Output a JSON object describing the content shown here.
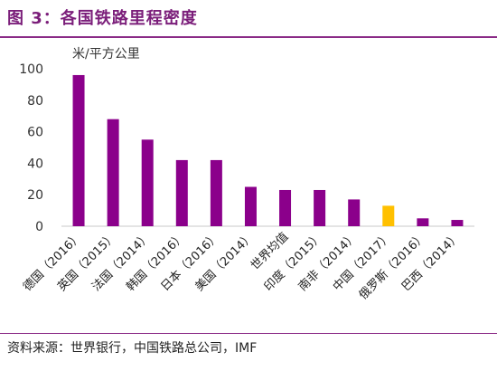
{
  "header": {
    "title": "图 3：各国铁路里程密度"
  },
  "footer": {
    "source": "资料来源：世界银行，中国铁路总公司，IMF"
  },
  "chart_data": {
    "type": "bar",
    "ylabel": "米/平方公里",
    "ylim": [
      0,
      100
    ],
    "yticks": [
      0,
      20,
      40,
      60,
      80,
      100
    ],
    "categories": [
      "德国（2016）",
      "英国（2015）",
      "法国（2014）",
      "韩国（2016）",
      "日本（2016）",
      "美国（2014）",
      "世界均值",
      "印度（2015）",
      "南非（2014）",
      "中国（2017）",
      "俄罗斯（2016）",
      "巴西（2014）"
    ],
    "values": [
      96,
      68,
      55,
      42,
      42,
      25,
      23,
      23,
      17,
      13,
      5,
      4
    ],
    "colors": [
      "#8b008b",
      "#8b008b",
      "#8b008b",
      "#8b008b",
      "#8b008b",
      "#8b008b",
      "#8b008b",
      "#8b008b",
      "#8b008b",
      "#ffc000",
      "#8b008b",
      "#8b008b"
    ],
    "grid": false,
    "legend": "none"
  }
}
